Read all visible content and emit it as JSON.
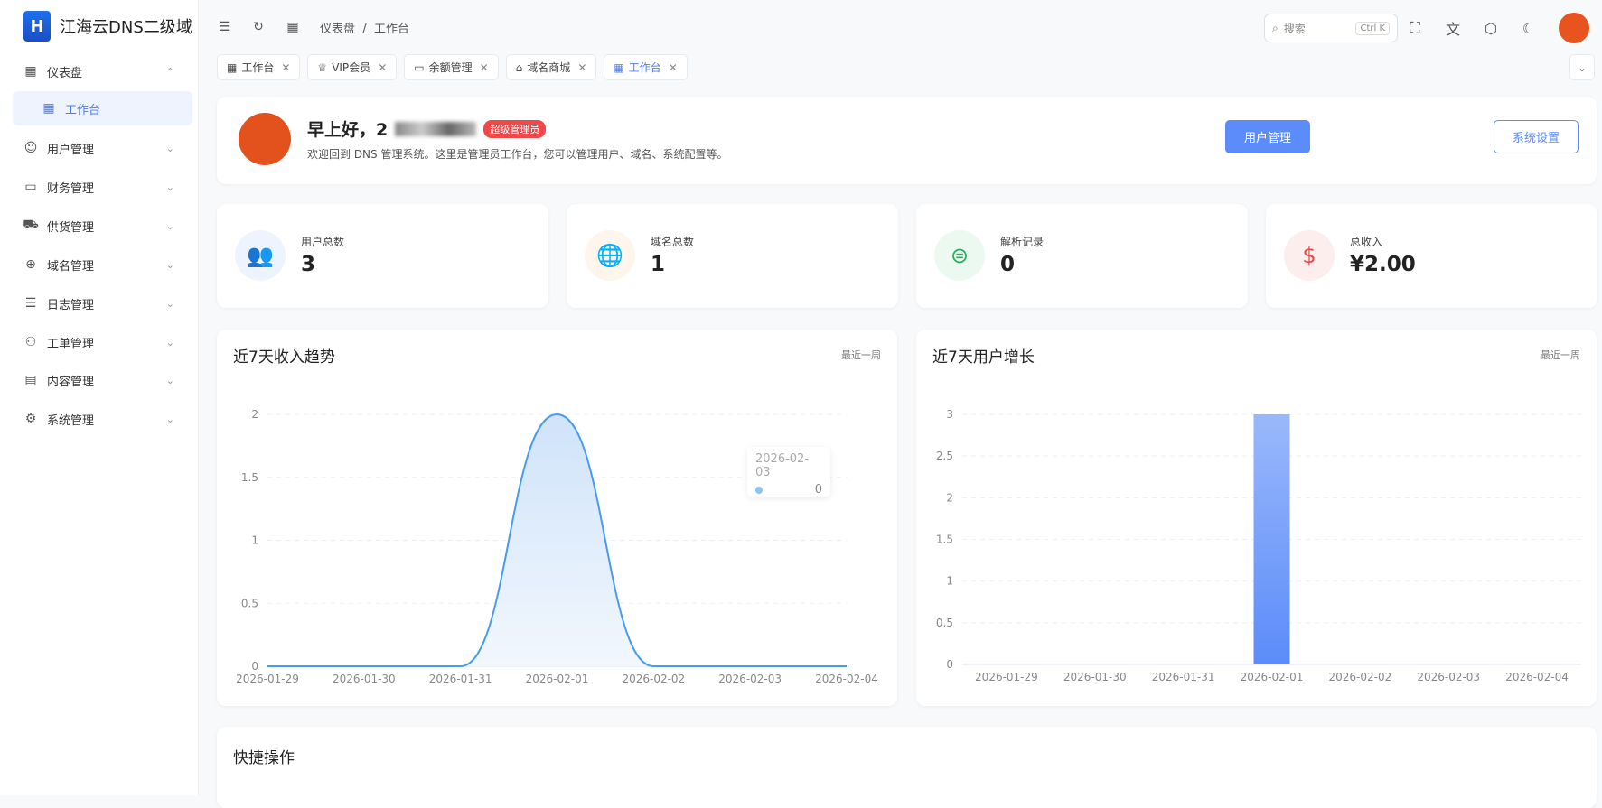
{
  "app": {
    "title": "江海云DNS二级域",
    "logo_text": "H"
  },
  "sidebar": {
    "items": [
      {
        "label": "仪表盘",
        "icon": "dashboard-icon",
        "glyph": "▦",
        "chev": "⌃"
      },
      {
        "label": "工作台",
        "icon": "workbench-icon",
        "glyph": "▦",
        "active": true
      },
      {
        "label": "用户管理",
        "icon": "user-icon",
        "glyph": "☺",
        "chev": "⌄"
      },
      {
        "label": "财务管理",
        "icon": "finance-icon",
        "glyph": "▭",
        "chev": "⌄"
      },
      {
        "label": "供货管理",
        "icon": "truck-icon",
        "glyph": "⛟",
        "chev": "⌄"
      },
      {
        "label": "域名管理",
        "icon": "globe-icon",
        "glyph": "⊕",
        "chev": "⌄"
      },
      {
        "label": "日志管理",
        "icon": "log-icon",
        "glyph": "☰",
        "chev": "⌄"
      },
      {
        "label": "工单管理",
        "icon": "ticket-icon",
        "glyph": "⚇",
        "chev": "⌄"
      },
      {
        "label": "内容管理",
        "icon": "document-icon",
        "glyph": "▤",
        "chev": "⌄"
      },
      {
        "label": "系统管理",
        "icon": "gear-icon",
        "glyph": "⚙",
        "chev": "⌄"
      }
    ]
  },
  "header": {
    "breadcrumb": [
      "仪表盘",
      "工作台"
    ],
    "separator": "/",
    "search_placeholder": "搜索",
    "shortcut": "Ctrl K"
  },
  "tabs": [
    {
      "label": "工作台",
      "glyph": "▦"
    },
    {
      "label": "VIP会员",
      "glyph": "♕"
    },
    {
      "label": "余额管理",
      "glyph": "▭"
    },
    {
      "label": "域名商城",
      "glyph": "⌂"
    },
    {
      "label": "工作台",
      "glyph": "▦",
      "active": true
    }
  ],
  "welcome": {
    "greeting": "早上好，2",
    "role_badge": "超级管理员",
    "subtitle": "欢迎回到 DNS 管理系统。这里是管理员工作台，您可以管理用户、域名、系统配置等。",
    "btn_users": "用户管理",
    "btn_settings": "系统设置"
  },
  "stats": [
    {
      "label": "用户总数",
      "value": "3",
      "icon": "users-icon",
      "glyph": "👥",
      "color": "#4c8df6",
      "bg": "#eef4fe"
    },
    {
      "label": "域名总数",
      "value": "1",
      "icon": "globe-icon",
      "glyph": "🌐",
      "color": "#f08a24",
      "bg": "#fef5ec"
    },
    {
      "label": "解析记录",
      "value": "0",
      "icon": "dns-record-icon",
      "glyph": "⊜",
      "color": "#22b45a",
      "bg": "#ecf9f0"
    },
    {
      "label": "总收入",
      "value": "¥2.00",
      "icon": "dollar-icon",
      "glyph": "$",
      "color": "#e84a4a",
      "bg": "#fdeeee"
    }
  ],
  "charts": {
    "income": {
      "title": "近7天收入趋势",
      "range": "最近一周"
    },
    "users": {
      "title": "近7天用户增长",
      "range": "最近一周"
    }
  },
  "tooltip": {
    "date": "2026-02-03",
    "value": "0"
  },
  "quick": {
    "title": "快捷操作"
  },
  "chart_data": [
    {
      "type": "area",
      "title": "近7天收入趋势",
      "categories": [
        "2026-01-29",
        "2026-01-30",
        "2026-01-31",
        "2026-02-01",
        "2026-02-02",
        "2026-02-03",
        "2026-02-04"
      ],
      "values": [
        0,
        0,
        0,
        2,
        0,
        0,
        0
      ],
      "ylim": [
        0,
        2
      ],
      "yticks": [
        "0",
        "0.5",
        "1",
        "1.5",
        "2"
      ],
      "color": "#4a9bef",
      "grid": true
    },
    {
      "type": "bar",
      "title": "近7天用户增长",
      "categories": [
        "2026-01-29",
        "2026-01-30",
        "2026-01-31",
        "2026-02-01",
        "2026-02-02",
        "2026-02-03",
        "2026-02-04"
      ],
      "values": [
        0,
        0,
        0,
        3,
        0,
        0,
        0
      ],
      "ylim": [
        0,
        3
      ],
      "yticks": [
        "0",
        "0.5",
        "1",
        "1.5",
        "2",
        "2.5",
        "3"
      ],
      "color": "#5b8cfa",
      "grid": true
    }
  ]
}
